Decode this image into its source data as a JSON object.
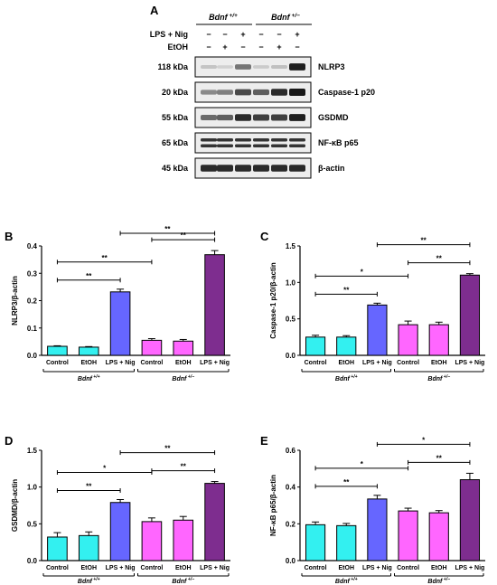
{
  "figure": {
    "blot": {
      "panel_letter": "A",
      "genotypes": [
        "Bdnf",
        "Bdnf"
      ],
      "genotype_superscripts": [
        "+/+",
        "+/−"
      ],
      "treatment_rows": [
        {
          "label": "LPS + Nig",
          "marks": [
            "−",
            "−",
            "+",
            "−",
            "−",
            "+"
          ]
        },
        {
          "label": "EtOH",
          "marks": [
            "−",
            "+",
            "−",
            "−",
            "+",
            "−"
          ]
        }
      ],
      "bands": [
        {
          "mw": "118 kDa",
          "protein": "NLRP3",
          "intensities": [
            0.18,
            0.12,
            0.55,
            0.15,
            0.2,
            0.95
          ]
        },
        {
          "mw": "20 kDa",
          "protein": "Caspase-1 p20",
          "intensities": [
            0.45,
            0.5,
            0.75,
            0.65,
            0.9,
            0.98
          ]
        },
        {
          "mw": "55 kDa",
          "protein": "GSDMD",
          "intensities": [
            0.6,
            0.65,
            0.9,
            0.8,
            0.8,
            0.95
          ]
        },
        {
          "mw": "65 kDa",
          "protein": "NF-κB p65",
          "intensities": [
            0.85,
            0.85,
            0.85,
            0.85,
            0.85,
            0.85
          ]
        },
        {
          "mw": "45 kDa",
          "protein": "β-actin",
          "intensities": [
            0.9,
            0.9,
            0.9,
            0.9,
            0.9,
            0.9
          ]
        }
      ]
    },
    "bar_colors": [
      "#33f0f0",
      "#33f0f0",
      "#6666ff",
      "#ff66ff",
      "#ff66ff",
      "#7e2d8f"
    ],
    "significance_label": "**",
    "chart_data": [
      {
        "type": "bar",
        "panel_letter": "B",
        "ylabel": "NLRP3/β-actin",
        "ylim": [
          0,
          0.4
        ],
        "yticks": [
          "0.0",
          "0.1",
          "0.2",
          "0.3",
          "0.4"
        ],
        "categories": [
          "Control",
          "EtOH",
          "LPS + Nig",
          "Control",
          "EtOH",
          "LPS + Nig"
        ],
        "values": [
          0.033,
          0.03,
          0.232,
          0.055,
          0.052,
          0.368
        ],
        "errors": [
          0.002,
          0.002,
          0.01,
          0.006,
          0.006,
          0.015
        ],
        "groups": [
          {
            "label": "Bdnf",
            "sup": "+/+"
          },
          {
            "label": "Bdnf",
            "sup": "+/−"
          }
        ],
        "significance": [
          {
            "from": 0,
            "to": 2,
            "label": "**"
          },
          {
            "from": 0,
            "to": 3,
            "label": "**"
          },
          {
            "from": 3,
            "to": 5,
            "label": "**"
          },
          {
            "from": 2,
            "to": 5,
            "label": "**"
          }
        ]
      },
      {
        "type": "bar",
        "panel_letter": "C",
        "ylabel": "Caspase-1 p20/β-actin",
        "ylim": [
          0,
          1.5
        ],
        "yticks": [
          "0.0",
          "0.5",
          "1.0",
          "1.5"
        ],
        "categories": [
          "Control",
          "EtOH",
          "LPS + Nig",
          "Control",
          "EtOH",
          "LPS + Nig"
        ],
        "values": [
          0.25,
          0.25,
          0.69,
          0.42,
          0.42,
          1.1
        ],
        "errors": [
          0.025,
          0.02,
          0.025,
          0.05,
          0.035,
          0.02
        ],
        "groups": [
          {
            "label": "Bdnf",
            "sup": "+/+"
          },
          {
            "label": "Bdnf",
            "sup": "+/−"
          }
        ],
        "significance": [
          {
            "from": 0,
            "to": 2,
            "label": "**"
          },
          {
            "from": 0,
            "to": 3,
            "label": "*"
          },
          {
            "from": 3,
            "to": 5,
            "label": "**"
          },
          {
            "from": 2,
            "to": 5,
            "label": "**"
          }
        ]
      },
      {
        "type": "bar",
        "panel_letter": "D",
        "ylabel": "GSDMD/β-actin",
        "ylim": [
          0,
          1.5
        ],
        "yticks": [
          "0.0",
          "0.5",
          "1.0",
          "1.5"
        ],
        "categories": [
          "Control",
          "EtOH",
          "LPS + Nig",
          "Control",
          "EtOH",
          "LPS + Nig"
        ],
        "values": [
          0.32,
          0.34,
          0.79,
          0.53,
          0.55,
          1.05
        ],
        "errors": [
          0.06,
          0.05,
          0.04,
          0.05,
          0.05,
          0.025
        ],
        "groups": [
          {
            "label": "Bdnf",
            "sup": "+/+"
          },
          {
            "label": "Bdnf",
            "sup": "+/−"
          }
        ],
        "significance": [
          {
            "from": 0,
            "to": 2,
            "label": "**"
          },
          {
            "from": 0,
            "to": 3,
            "label": "*"
          },
          {
            "from": 3,
            "to": 5,
            "label": "**"
          },
          {
            "from": 2,
            "to": 5,
            "label": "**"
          }
        ]
      },
      {
        "type": "bar",
        "panel_letter": "E",
        "ylabel": "NF-κB p65/β-actin",
        "ylim": [
          0,
          0.6
        ],
        "yticks": [
          "0.0",
          "0.2",
          "0.4",
          "0.6"
        ],
        "categories": [
          "Control",
          "EtOH",
          "LPS + Nig",
          "Control",
          "EtOH",
          "LPS + Nig"
        ],
        "values": [
          0.195,
          0.19,
          0.335,
          0.27,
          0.26,
          0.44
        ],
        "errors": [
          0.015,
          0.012,
          0.02,
          0.015,
          0.012,
          0.035
        ],
        "groups": [
          {
            "label": "Bdnf",
            "sup": "+/+"
          },
          {
            "label": "Bdnf",
            "sup": "+/−"
          }
        ],
        "significance": [
          {
            "from": 0,
            "to": 2,
            "label": "**"
          },
          {
            "from": 0,
            "to": 3,
            "label": "*"
          },
          {
            "from": 3,
            "to": 5,
            "label": "**"
          },
          {
            "from": 2,
            "to": 5,
            "label": "*"
          }
        ]
      }
    ]
  }
}
